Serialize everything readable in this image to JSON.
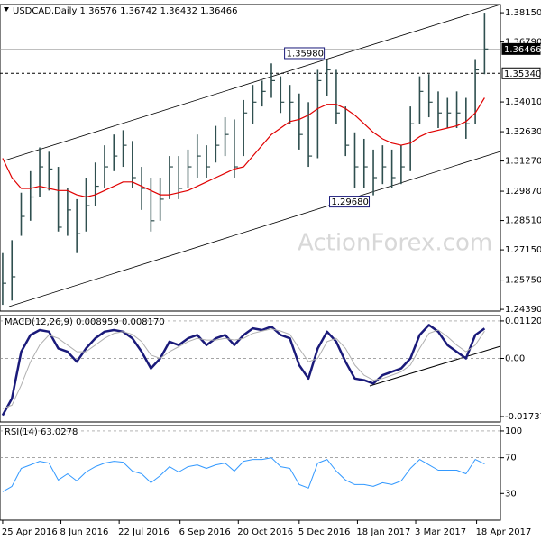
{
  "chart_data": [
    {
      "type": "ohlc",
      "title": "USDCAD,Daily  1.36576 1.36742 1.36432 1.36466",
      "watermark": "ActionForex.com",
      "x": [
        "2016-04-25",
        "2016-05-02",
        "2016-05-09",
        "2016-05-16",
        "2016-05-23",
        "2016-05-30",
        "2016-06-06",
        "2016-06-13",
        "2016-06-20",
        "2016-06-27",
        "2016-07-04",
        "2016-07-11",
        "2016-07-18",
        "2016-07-25",
        "2016-08-01",
        "2016-08-08",
        "2016-08-15",
        "2016-08-22",
        "2016-08-29",
        "2016-09-05",
        "2016-09-12",
        "2016-09-19",
        "2016-09-26",
        "2016-10-03",
        "2016-10-10",
        "2016-10-17",
        "2016-10-24",
        "2016-10-31",
        "2016-11-07",
        "2016-11-14",
        "2016-11-21",
        "2016-11-28",
        "2016-12-05",
        "2016-12-12",
        "2016-12-19",
        "2016-12-26",
        "2017-01-02",
        "2017-01-09",
        "2017-01-16",
        "2017-01-23",
        "2017-01-30",
        "2017-02-06",
        "2017-02-13",
        "2017-02-20",
        "2017-02-27",
        "2017-03-06",
        "2017-03-13",
        "2017-03-20",
        "2017-03-27",
        "2017-04-03",
        "2017-04-10",
        "2017-04-17",
        "2017-04-24"
      ],
      "xlim": [
        "2016-04-23",
        "2017-05-06"
      ],
      "xticks": [
        {
          "value": "2016-04-25",
          "label": "25 Apr 2016"
        },
        {
          "value": "2016-06-08",
          "label": "8 Jun 2016"
        },
        {
          "value": "2016-07-22",
          "label": "22 Jul 2016"
        },
        {
          "value": "2016-09-06",
          "label": "6 Sep 2016"
        },
        {
          "value": "2016-10-20",
          "label": "20 Oct 2016"
        },
        {
          "value": "2016-12-05",
          "label": "5 Dec 2016"
        },
        {
          "value": "2017-01-18",
          "label": "18 Jan 2017"
        },
        {
          "value": "2017-03-03",
          "label": "3 Mar 2017"
        },
        {
          "value": "2017-04-18",
          "label": "18 Apr 2017"
        }
      ],
      "ylim": [
        1.2431,
        1.3853
      ],
      "yticks": [
        {
          "value": 1.3815,
          "label": "1.38150"
        },
        {
          "value": 1.3679,
          "label": "1.36790"
        },
        {
          "value": 1.3401,
          "label": "1.34010"
        },
        {
          "value": 1.3263,
          "label": "1.32630"
        },
        {
          "value": 1.3127,
          "label": "1.31270"
        },
        {
          "value": 1.2987,
          "label": "1.29870"
        },
        {
          "value": 1.2851,
          "label": "1.28510"
        },
        {
          "value": 1.2715,
          "label": "1.27150"
        },
        {
          "value": 1.2575,
          "label": "1.25750"
        },
        {
          "value": 1.2439,
          "label": "1.24390"
        }
      ],
      "price_markers": [
        {
          "value": 1.36466,
          "label": "1.36466",
          "color": "#000000"
        },
        {
          "value": 1.3534,
          "label": "1.35340",
          "color": "#ffffff"
        }
      ],
      "annotations": [
        {
          "value": 1.3598,
          "label": "1.35980",
          "x": "2016-12-28",
          "side": "above"
        },
        {
          "value": 1.2968,
          "label": "1.29680",
          "x": "2017-01-31",
          "side": "below"
        }
      ],
      "series": [
        {
          "name": "close",
          "color": "#2f4f4f",
          "highs": [
            1.27,
            1.276,
            1.298,
            1.308,
            1.319,
            1.317,
            1.31,
            1.3,
            1.295,
            1.305,
            1.312,
            1.32,
            1.325,
            1.327,
            1.322,
            1.31,
            1.305,
            1.305,
            1.315,
            1.315,
            1.318,
            1.325,
            1.32,
            1.329,
            1.333,
            1.332,
            1.341,
            1.348,
            1.35,
            1.358,
            1.352,
            1.348,
            1.344,
            1.34,
            1.355,
            1.3598,
            1.355,
            1.338,
            1.326,
            1.323,
            1.318,
            1.32,
            1.318,
            1.32,
            1.338,
            1.352,
            1.353,
            1.345,
            1.342,
            1.345,
            1.342,
            1.36,
            1.3815
          ],
          "lows": [
            1.246,
            1.248,
            1.278,
            1.285,
            1.296,
            1.299,
            1.28,
            1.278,
            1.27,
            1.28,
            1.292,
            1.3,
            1.308,
            1.31,
            1.3,
            1.29,
            1.28,
            1.285,
            1.295,
            1.295,
            1.3,
            1.305,
            1.305,
            1.312,
            1.315,
            1.305,
            1.315,
            1.33,
            1.338,
            1.342,
            1.335,
            1.33,
            1.318,
            1.31,
            1.314,
            1.343,
            1.33,
            1.315,
            1.3,
            1.3,
            1.2968,
            1.302,
            1.3,
            1.302,
            1.308,
            1.33,
            1.333,
            1.328,
            1.328,
            1.328,
            1.323,
            1.33,
            1.353
          ],
          "values": [
            1.256,
            1.259,
            1.287,
            1.296,
            1.31,
            1.309,
            1.282,
            1.29,
            1.279,
            1.292,
            1.301,
            1.31,
            1.315,
            1.32,
            1.305,
            1.3,
            1.285,
            1.295,
            1.31,
            1.3,
            1.31,
            1.315,
            1.31,
            1.32,
            1.325,
            1.31,
            1.335,
            1.34,
            1.345,
            1.35,
            1.34,
            1.34,
            1.325,
            1.315,
            1.35,
            1.355,
            1.335,
            1.32,
            1.31,
            1.31,
            1.305,
            1.31,
            1.305,
            1.31,
            1.33,
            1.345,
            1.34,
            1.335,
            1.335,
            1.335,
            1.33,
            1.355,
            1.36466
          ]
        },
        {
          "name": "moving-average",
          "color": "#e00000",
          "values": [
            1.314,
            1.305,
            1.3,
            1.3,
            1.301,
            1.3,
            1.299,
            1.299,
            1.297,
            1.296,
            1.297,
            1.299,
            1.301,
            1.303,
            1.303,
            1.301,
            1.299,
            1.297,
            1.297,
            1.298,
            1.299,
            1.301,
            1.303,
            1.305,
            1.307,
            1.309,
            1.31,
            1.315,
            1.32,
            1.325,
            1.328,
            1.331,
            1.332,
            1.334,
            1.337,
            1.339,
            1.339,
            1.337,
            1.334,
            1.33,
            1.326,
            1.323,
            1.321,
            1.32,
            1.321,
            1.324,
            1.326,
            1.327,
            1.328,
            1.329,
            1.331,
            1.335,
            1.342
          ]
        }
      ]
    },
    {
      "type": "line",
      "title": "MACD(12,26,9) 0.008959 0.008170",
      "ylim": [
        -0.019,
        0.0128
      ],
      "yticks": [
        0.011204,
        {
          "value": 0,
          "label": "0.00"
        },
        -0.017371
      ],
      "series": [
        {
          "name": "macd",
          "color": "#1a1a7a",
          "width": 2.5,
          "values": [
            -0.017,
            -0.012,
            0.002,
            0.007,
            0.0085,
            0.008,
            0.003,
            0.002,
            -0.001,
            0.003,
            0.006,
            0.008,
            0.0085,
            0.008,
            0.006,
            0.002,
            -0.003,
            0.0,
            0.005,
            0.004,
            0.006,
            0.007,
            0.004,
            0.006,
            0.007,
            0.004,
            0.007,
            0.009,
            0.0085,
            0.0095,
            0.007,
            0.006,
            -0.002,
            -0.006,
            0.003,
            0.008,
            0.005,
            -0.001,
            -0.006,
            -0.0065,
            -0.0075,
            -0.005,
            -0.004,
            -0.003,
            0.0,
            0.007,
            0.01,
            0.008,
            0.004,
            0.002,
            0.0,
            0.007,
            0.008959
          ]
        },
        {
          "name": "signal",
          "color": "#b0b0b0",
          "width": 1,
          "values": [
            -0.015,
            -0.014,
            -0.008,
            -0.001,
            0.004,
            0.007,
            0.006,
            0.004,
            0.002,
            0.002,
            0.004,
            0.006,
            0.0075,
            0.008,
            0.0072,
            0.005,
            0.001,
            0.0,
            0.002,
            0.0035,
            0.005,
            0.006,
            0.0055,
            0.0055,
            0.006,
            0.0055,
            0.006,
            0.0075,
            0.0082,
            0.0088,
            0.0082,
            0.0072,
            0.003,
            -0.001,
            0.0,
            0.005,
            0.006,
            0.003,
            -0.002,
            -0.005,
            -0.0065,
            -0.006,
            -0.005,
            -0.004,
            -0.002,
            0.003,
            0.0075,
            0.0085,
            0.0065,
            0.004,
            0.002,
            0.004,
            0.00817
          ]
        }
      ]
    },
    {
      "type": "line",
      "title": "RSI(14) 63.0278",
      "ylim": [
        0,
        106
      ],
      "yticks": [
        100,
        70,
        30
      ],
      "series": [
        {
          "name": "rsi",
          "color": "#3399ff",
          "width": 1,
          "values": [
            32,
            38,
            58,
            62,
            66,
            64,
            45,
            52,
            44,
            54,
            60,
            64,
            66,
            65,
            55,
            52,
            42,
            50,
            60,
            54,
            60,
            62,
            58,
            62,
            64,
            55,
            66,
            68,
            68,
            70,
            60,
            58,
            40,
            36,
            64,
            68,
            55,
            45,
            40,
            40,
            38,
            42,
            40,
            44,
            58,
            68,
            62,
            56,
            56,
            56,
            52,
            68,
            63.0278
          ]
        }
      ]
    }
  ]
}
